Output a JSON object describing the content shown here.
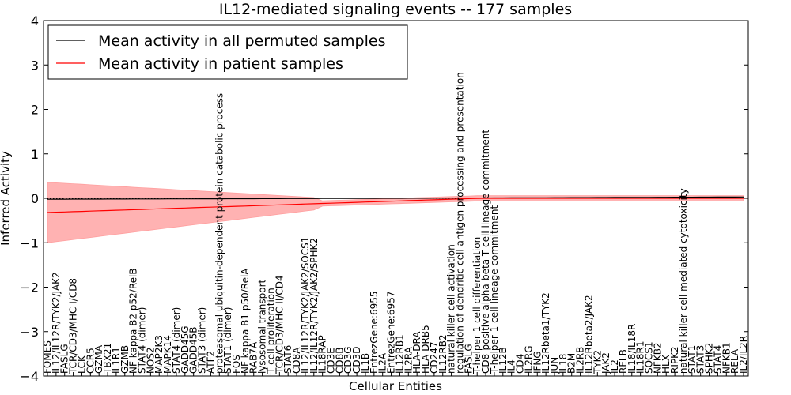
{
  "chart_data": {
    "type": "line",
    "title": "IL12-mediated signaling events -- 177 samples",
    "xlabel": "Cellular Entities",
    "ylabel": "Inferred Activity",
    "ylim": [
      -4,
      4
    ],
    "yticks": [
      "4",
      "3",
      "2",
      "1",
      "0",
      "−1",
      "−2",
      "−3",
      "−4"
    ],
    "ytick_values": [
      4,
      3,
      2,
      1,
      0,
      -1,
      -2,
      -3,
      -4
    ],
    "legend_position": "top-left",
    "categories": [
      "FOMES",
      "IL12/IL12R/TYK2/JAK2",
      "FASLG",
      "TCR/CD3/MHC I/CD8",
      "LCK",
      "CCR5",
      "GZMA",
      "TBX21",
      "IL1R1",
      "GZMB",
      "NF kappa B2 p52/RelB",
      "STAT4 (dimer)",
      "NOS2",
      "MAP2K3",
      "MAPK14",
      "STAT4 (dimer)",
      "GADD45G",
      "GADD45B",
      "STAT3 (dimer)",
      "ATF2",
      "proteasomal ubiquitin-dependent protein catabolic process",
      "STAT1 (dimer)",
      "FOS",
      "NF kappa B1 p50/RelA",
      "RAB7A",
      "lysosomal transport",
      "T cell proliferation",
      "TCR/CD3/MHC II/CD4",
      "STAT6",
      "CD8A",
      "IL12/IL12R/TYK2/JAK2/SOCS1",
      "IL12/IL12R/TYK2/JAK2/SPHK2",
      "IL18RAP",
      "CD3E",
      "CD8B",
      "CD3G",
      "CD3D",
      "IL1B",
      "EntrezGene:6955",
      "IL2A",
      "EntrezGene:6957",
      "IL12RB1",
      "IL2RA",
      "HLA-DRA",
      "HLA-DRB5",
      "CD247",
      "IL12RB2",
      "natural killer cell activation",
      "regulation of dendritic cell antigen processing and presentation",
      "FASLG",
      "T-helper 1 cell differentiation",
      "CD8-positive alpha-beta T cell lineage commitment",
      "T-helper 1 cell lineage commitment",
      "IL12B",
      "IL4",
      "CD4",
      "IL2RG",
      "IFNG",
      "IL12Rbeta1/TYK2",
      "JUN",
      "IL18",
      "B2M",
      "IL2RB",
      "IL12Rbeta2/JAK2",
      "TYK2",
      "JAK2",
      "IL2",
      "RELB",
      "IL18/IL18R",
      "IL18R1",
      "SOCS1",
      "NFKB2",
      "HLX",
      "RIPK2",
      "natural killer cell mediated cytotoxicity",
      "STAT1",
      "STAT3",
      "SPHK2",
      "STAT4",
      "NFKB1",
      "RELA",
      "IL2/IL2R"
    ],
    "series": [
      {
        "name": "Mean activity in all permuted samples",
        "color": "#000000",
        "start": -0.02,
        "end": 0.03
      },
      {
        "name": "Mean activity in patient samples",
        "color": "#ff0000",
        "start": -0.32,
        "end": 0.03
      }
    ],
    "band_color": "#ff9999",
    "reference_line": 0
  }
}
